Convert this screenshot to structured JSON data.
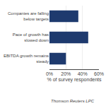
{
  "chart_data": {
    "type": "bar",
    "orientation": "horizontal",
    "categories": [
      "Companies are falling\nbelow targets",
      "Pace of growth has\nslowed down",
      "EBITDA growth remains\nsteady"
    ],
    "values": [
      35,
      47,
      20
    ],
    "color": "#1e3a6e",
    "xlim": [
      0,
      60
    ],
    "xticks": [
      {
        "value": 0,
        "label": "0%"
      },
      {
        "value": 20,
        "label": "20%"
      },
      {
        "value": 40,
        "label": "40%"
      },
      {
        "value": 60,
        "label": "60%"
      }
    ],
    "xlabel": "% of survey respondents",
    "annotations": [
      "Thomson Reuters LPC"
    ],
    "grid": true
  }
}
